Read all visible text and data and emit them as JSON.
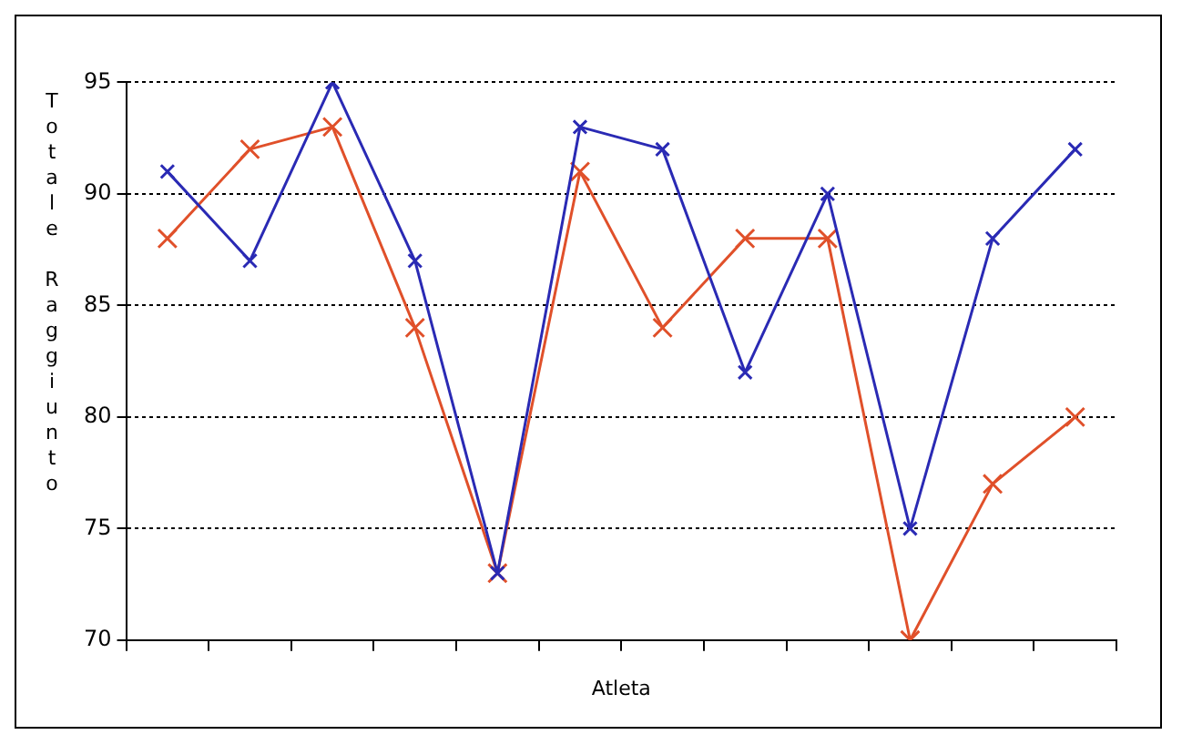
{
  "chart_data": {
    "type": "line",
    "xlabel": "Atleta",
    "ylabel": "Totale Raggiunto",
    "categories": [
      null,
      null,
      null,
      null,
      null,
      null,
      null,
      null,
      null,
      null,
      null,
      null
    ],
    "series": [
      {
        "color": "#2a2ab4",
        "values": [
          91,
          87,
          95,
          87,
          73,
          93,
          92,
          82,
          90,
          75,
          88,
          92
        ]
      },
      {
        "color": "#e0502a",
        "values": [
          88,
          92,
          93,
          84,
          73,
          91,
          84,
          88,
          88,
          70,
          77,
          80
        ]
      }
    ],
    "ylim": [
      70,
      95
    ],
    "yticks": [
      70,
      75,
      80,
      85,
      90,
      95
    ],
    "grid": "y",
    "legend": false,
    "marker": "cross",
    "line_style": "solid"
  }
}
